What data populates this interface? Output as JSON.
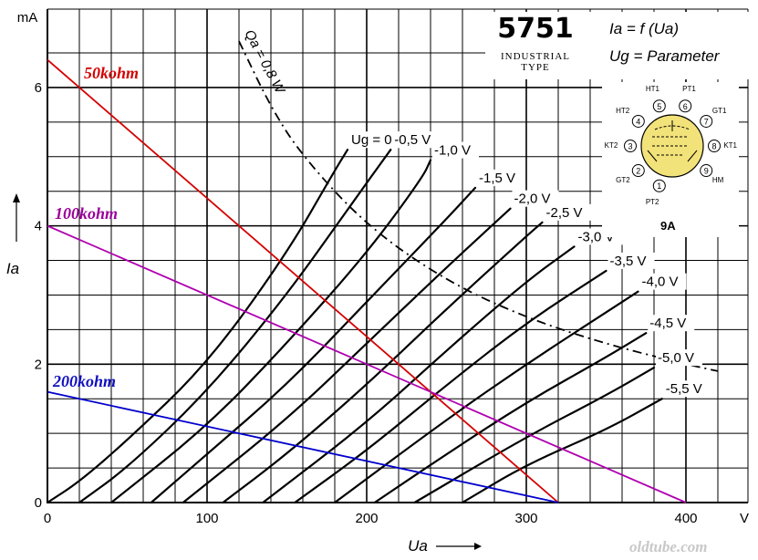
{
  "chart_data": {
    "type": "line",
    "title": "5751",
    "subtitle": "INDUSTRIAL TYPE",
    "formula_line1": "Ia = f (Ua)",
    "formula_line2": "Ug = Parameter",
    "xlabel": "Ua",
    "xunit": "V",
    "ylabel": "Ia",
    "yunit": "mA",
    "xlim": [
      0,
      420
    ],
    "ylim": [
      0,
      6.5
    ],
    "xticks": [
      0,
      100,
      200,
      300,
      400
    ],
    "yticks": [
      0,
      2,
      4,
      6
    ],
    "grid": true,
    "series": [
      {
        "name": "Ug = 0 V",
        "points": [
          [
            0,
            0
          ],
          [
            20,
            0.3
          ],
          [
            50,
            0.9
          ],
          [
            100,
            2.0
          ],
          [
            150,
            3.6
          ],
          [
            180,
            4.8
          ],
          [
            188,
            5.1
          ]
        ]
      },
      {
        "name": "-0,5 V",
        "points": [
          [
            20,
            0
          ],
          [
            50,
            0.5
          ],
          [
            100,
            1.6
          ],
          [
            150,
            3.0
          ],
          [
            190,
            4.3
          ],
          [
            215,
            5.1
          ]
        ]
      },
      {
        "name": "-1,0 V",
        "points": [
          [
            40,
            0
          ],
          [
            100,
            1.1
          ],
          [
            150,
            2.3
          ],
          [
            200,
            3.6
          ],
          [
            235,
            4.7
          ],
          [
            240,
            4.95
          ]
        ]
      },
      {
        "name": "-1,5 V",
        "points": [
          [
            65,
            0
          ],
          [
            100,
            0.7
          ],
          [
            150,
            1.7
          ],
          [
            200,
            2.9
          ],
          [
            250,
            4.1
          ],
          [
            268,
            4.55
          ]
        ]
      },
      {
        "name": "-2,0 V",
        "points": [
          [
            85,
            0
          ],
          [
            150,
            1.2
          ],
          [
            200,
            2.3
          ],
          [
            250,
            3.4
          ],
          [
            290,
            4.25
          ]
        ]
      },
      {
        "name": "-2,5 V",
        "points": [
          [
            110,
            0
          ],
          [
            150,
            0.7
          ],
          [
            200,
            1.7
          ],
          [
            250,
            2.8
          ],
          [
            300,
            3.85
          ],
          [
            310,
            4.05
          ]
        ]
      },
      {
        "name": "-3,0 V",
        "points": [
          [
            135,
            0
          ],
          [
            200,
            1.15
          ],
          [
            250,
            2.2
          ],
          [
            300,
            3.2
          ],
          [
            330,
            3.7
          ]
        ]
      },
      {
        "name": "-3,5 V",
        "points": [
          [
            155,
            0
          ],
          [
            200,
            0.75
          ],
          [
            250,
            1.7
          ],
          [
            300,
            2.6
          ],
          [
            350,
            3.35
          ]
        ]
      },
      {
        "name": "-4,0 V",
        "points": [
          [
            180,
            0
          ],
          [
            250,
            1.2
          ],
          [
            300,
            2.0
          ],
          [
            350,
            2.75
          ],
          [
            370,
            3.05
          ]
        ]
      },
      {
        "name": "-4,5 V",
        "points": [
          [
            205,
            0
          ],
          [
            250,
            0.7
          ],
          [
            300,
            1.45
          ],
          [
            350,
            2.1
          ],
          [
            375,
            2.45
          ]
        ]
      },
      {
        "name": "-5,0 V",
        "points": [
          [
            230,
            0
          ],
          [
            300,
            0.95
          ],
          [
            350,
            1.55
          ],
          [
            380,
            1.95
          ]
        ]
      },
      {
        "name": "-5,5 V",
        "points": [
          [
            260,
            0
          ],
          [
            300,
            0.55
          ],
          [
            350,
            1.05
          ],
          [
            385,
            1.5
          ]
        ]
      }
    ],
    "series_label_x": [
      188,
      215,
      240,
      268,
      290,
      310,
      330,
      350,
      370,
      375,
      380,
      385
    ],
    "series_label_y": [
      5.1,
      5.1,
      4.95,
      4.55,
      4.25,
      4.05,
      3.7,
      3.35,
      3.05,
      2.45,
      1.95,
      1.5
    ],
    "dissipation_curve": {
      "name": "Qa = 0,8 W",
      "points": [
        [
          120,
          6.67
        ],
        [
          140,
          5.71
        ],
        [
          160,
          5.0
        ],
        [
          200,
          4.0
        ],
        [
          250,
          3.2
        ],
        [
          300,
          2.67
        ],
        [
          350,
          2.29
        ],
        [
          400,
          2.0
        ],
        [
          420,
          1.9
        ]
      ]
    },
    "load_lines": [
      {
        "name": "50kohm",
        "color": "#d40000",
        "label_color": "#d40000",
        "from": [
          0,
          6.4
        ],
        "to": [
          320,
          0
        ]
      },
      {
        "name": "100kohm",
        "color": "#b000b0",
        "label_color": "#9a009a",
        "from": [
          0,
          4.0
        ],
        "to": [
          400,
          0
        ]
      },
      {
        "name": "200kohm",
        "color": "#0000cc",
        "label_color": "#1010c0",
        "from": [
          0,
          1.6
        ],
        "to": [
          320,
          0
        ]
      }
    ],
    "tube_base": {
      "type_label": "9A",
      "pins": [
        {
          "num": "1",
          "label": "PT2"
        },
        {
          "num": "2",
          "label": "GT2"
        },
        {
          "num": "3",
          "label": "KT2"
        },
        {
          "num": "4",
          "label": "HT2"
        },
        {
          "num": "5",
          "label": "HT1"
        },
        {
          "num": "6",
          "label": "PT1"
        },
        {
          "num": "7",
          "label": "GT1"
        },
        {
          "num": "8",
          "label": "KT1"
        },
        {
          "num": "9",
          "label": "HM"
        }
      ]
    },
    "watermark": "oldtube.com"
  }
}
